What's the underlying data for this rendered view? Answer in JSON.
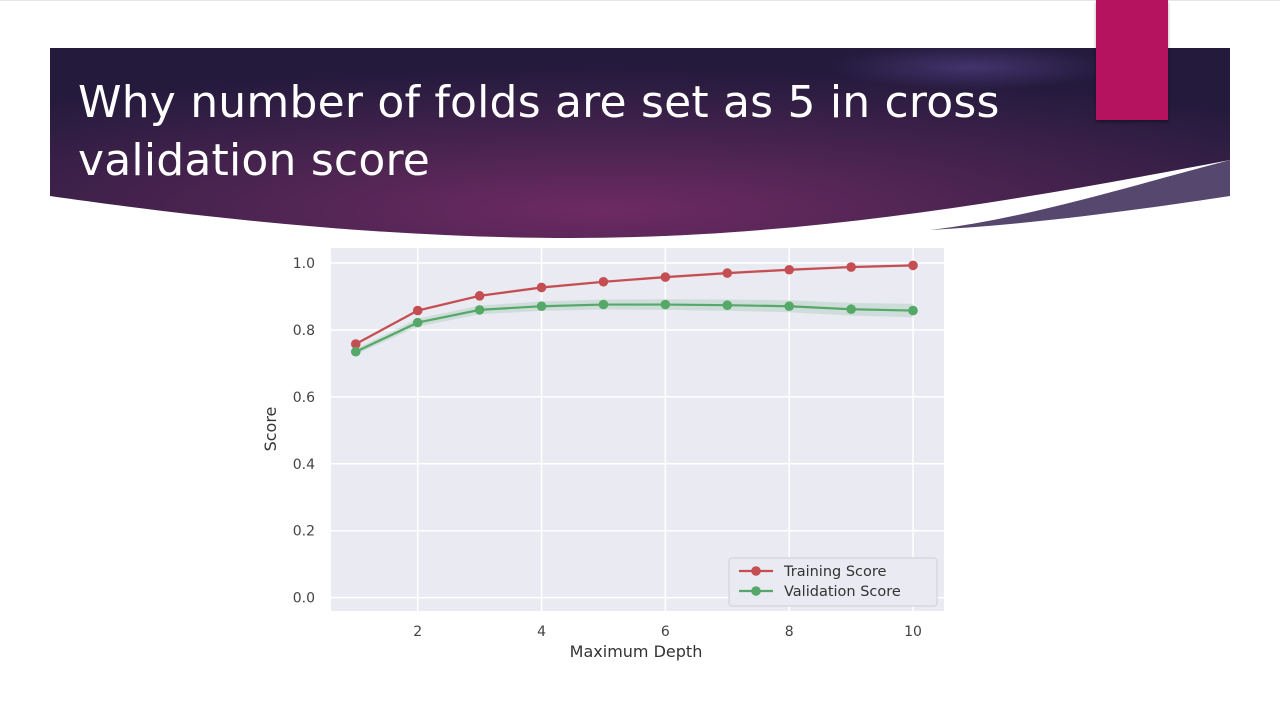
{
  "slide": {
    "title": "Why number of folds are set as 5 in cross validation score",
    "banner_colors": {
      "dark": "#261a3f",
      "mid": "#6a2a62",
      "accent": "#b5135f"
    }
  },
  "chart_data": {
    "type": "line",
    "title": "",
    "xlabel": "Maximum Depth",
    "ylabel": "Score",
    "x": [
      1,
      2,
      3,
      4,
      5,
      6,
      7,
      8,
      9,
      10
    ],
    "xlim": [
      0.6,
      10.5
    ],
    "ylim": [
      -0.04,
      1.045
    ],
    "xticks": [
      2,
      4,
      6,
      8,
      10
    ],
    "yticks": [
      0.0,
      0.2,
      0.4,
      0.6,
      0.8,
      1.0
    ],
    "ytick_labels": [
      "0.0",
      "0.2",
      "0.4",
      "0.6",
      "0.8",
      "1.0"
    ],
    "grid": true,
    "legend_position": "lower-right",
    "series": [
      {
        "name": "Training Score",
        "color": "#c44e52",
        "values": [
          0.758,
          0.858,
          0.902,
          0.927,
          0.944,
          0.958,
          0.97,
          0.98,
          0.988,
          0.993
        ],
        "band": [
          0.004,
          0.004,
          0.004,
          0.004,
          0.004,
          0.004,
          0.004,
          0.004,
          0.004,
          0.004
        ]
      },
      {
        "name": "Validation Score",
        "color": "#55a868",
        "values": [
          0.735,
          0.822,
          0.86,
          0.871,
          0.876,
          0.876,
          0.874,
          0.871,
          0.862,
          0.858
        ],
        "band": [
          0.008,
          0.012,
          0.013,
          0.014,
          0.015,
          0.016,
          0.017,
          0.018,
          0.019,
          0.02
        ]
      }
    ]
  }
}
